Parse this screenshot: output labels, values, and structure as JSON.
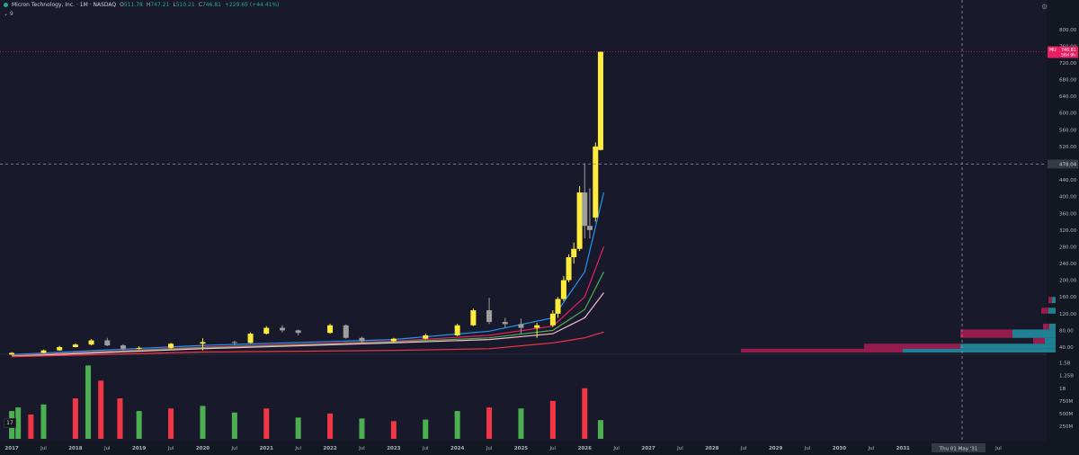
{
  "header": {
    "symbol": "Micron Technology, Inc. · 1M · NASDAQ",
    "open_label": "O",
    "open": "511.78",
    "high_label": "H",
    "high": "747.21",
    "low_label": "L",
    "low": "510.21",
    "close_label": "C",
    "close": "746.81",
    "change": "+229.65 (+44.41%)",
    "collapse": "⌄ 9"
  },
  "icons": [
    "settings-icon",
    "collapse-chevron-icon",
    "volume-indicator-icon"
  ],
  "colors": {
    "bg": "#181a2b",
    "up_bar": "#ffeb3b",
    "down_bar": "#9e9e9e",
    "vol_up": "#4caf50",
    "vol_down": "#f23645",
    "price_tag": "#e91e63"
  },
  "price_axis": {
    "ticks": [
      "800.00",
      "760.00",
      "720.00",
      "680.00",
      "640.00",
      "600.00",
      "560.00",
      "520.00",
      "480.00",
      "440.00",
      "400.00",
      "360.00",
      "320.00",
      "280.00",
      "240.00",
      "200.00",
      "160.00",
      "120.00",
      "80.00",
      "40.00"
    ],
    "crosshair_price": "478.04",
    "tag_symbol": "MU",
    "tag_price": "746.81",
    "tag_countdown": "58d 9h"
  },
  "volume_axis": {
    "ticks": [
      "1.5B",
      "1.25B",
      "1B",
      "750M",
      "500M",
      "250M"
    ]
  },
  "time_axis": {
    "labels": [
      "2017",
      "Jul",
      "2018",
      "Jul",
      "2019",
      "Jul",
      "2020",
      "Jul",
      "2021",
      "Jul",
      "2022",
      "Jul",
      "2023",
      "Jul",
      "2024",
      "Jul",
      "2025",
      "Jul",
      "2026",
      "Jul",
      "2027",
      "Jul",
      "2028",
      "Jul",
      "2029",
      "Jul",
      "2030",
      "Jul",
      "2031",
      "Jul",
      "2032",
      "Jul"
    ],
    "crosshair_time": "Thu 01 May '31"
  },
  "chart_data": [
    {
      "type": "candlestick",
      "title": "Micron Technology, Inc. · 1M · NASDAQ",
      "x_unit": "year",
      "xlim": [
        2016.9,
        2033.2
      ],
      "ylim": [
        27,
        806
      ],
      "y_scale": "linear",
      "grid": false,
      "candles": [
        {
          "t": 2017.0,
          "o": 22,
          "c": 26,
          "h": 28,
          "l": 21
        },
        {
          "t": 2017.5,
          "o": 26,
          "c": 32,
          "h": 34,
          "l": 25
        },
        {
          "t": 2017.75,
          "o": 32,
          "c": 40,
          "h": 43,
          "l": 31
        },
        {
          "t": 2018.0,
          "o": 40,
          "c": 46,
          "h": 49,
          "l": 39
        },
        {
          "t": 2018.25,
          "o": 46,
          "c": 56,
          "h": 59,
          "l": 44
        },
        {
          "t": 2018.5,
          "o": 56,
          "c": 44,
          "h": 62,
          "l": 42
        },
        {
          "t": 2018.75,
          "o": 44,
          "c": 36,
          "h": 47,
          "l": 32
        },
        {
          "t": 2019.0,
          "o": 36,
          "c": 38,
          "h": 42,
          "l": 34
        },
        {
          "t": 2019.5,
          "o": 38,
          "c": 48,
          "h": 50,
          "l": 36
        },
        {
          "t": 2020.0,
          "o": 48,
          "c": 52,
          "h": 61,
          "l": 32
        },
        {
          "t": 2020.5,
          "o": 52,
          "c": 50,
          "h": 55,
          "l": 44
        },
        {
          "t": 2020.75,
          "o": 50,
          "c": 72,
          "h": 75,
          "l": 49
        },
        {
          "t": 2021.0,
          "o": 72,
          "c": 86,
          "h": 90,
          "l": 70
        },
        {
          "t": 2021.25,
          "o": 86,
          "c": 80,
          "h": 92,
          "l": 75
        },
        {
          "t": 2021.5,
          "o": 80,
          "c": 74,
          "h": 82,
          "l": 68
        },
        {
          "t": 2022.0,
          "o": 74,
          "c": 92,
          "h": 96,
          "l": 72
        },
        {
          "t": 2022.25,
          "o": 92,
          "c": 62,
          "h": 94,
          "l": 60
        },
        {
          "t": 2022.5,
          "o": 62,
          "c": 54,
          "h": 65,
          "l": 48
        },
        {
          "t": 2023.0,
          "o": 54,
          "c": 60,
          "h": 62,
          "l": 52
        },
        {
          "t": 2023.5,
          "o": 60,
          "c": 68,
          "h": 72,
          "l": 58
        },
        {
          "t": 2024.0,
          "o": 68,
          "c": 92,
          "h": 96,
          "l": 66
        },
        {
          "t": 2024.25,
          "o": 92,
          "c": 128,
          "h": 132,
          "l": 90
        },
        {
          "t": 2024.5,
          "o": 128,
          "c": 100,
          "h": 158,
          "l": 95
        },
        {
          "t": 2024.75,
          "o": 100,
          "c": 95,
          "h": 110,
          "l": 86
        },
        {
          "t": 2025.0,
          "o": 95,
          "c": 86,
          "h": 108,
          "l": 72
        },
        {
          "t": 2025.25,
          "o": 86,
          "c": 92,
          "h": 98,
          "l": 62
        },
        {
          "t": 2025.5,
          "o": 92,
          "c": 120,
          "h": 128,
          "l": 88
        },
        {
          "t": 2025.58,
          "o": 120,
          "c": 155,
          "h": 160,
          "l": 110
        },
        {
          "t": 2025.67,
          "o": 155,
          "c": 200,
          "h": 210,
          "l": 150
        },
        {
          "t": 2025.75,
          "o": 200,
          "c": 255,
          "h": 262,
          "l": 195
        },
        {
          "t": 2025.83,
          "o": 255,
          "c": 275,
          "h": 290,
          "l": 240
        },
        {
          "t": 2025.92,
          "o": 275,
          "c": 410,
          "h": 425,
          "l": 270
        },
        {
          "t": 2026.0,
          "o": 410,
          "c": 330,
          "h": 480,
          "l": 300
        },
        {
          "t": 2026.08,
          "o": 330,
          "c": 320,
          "h": 420,
          "l": 300
        },
        {
          "t": 2026.17,
          "o": 350,
          "c": 520,
          "h": 530,
          "l": 340
        },
        {
          "t": 2026.25,
          "o": 511.78,
          "c": 746.81,
          "h": 747.21,
          "l": 510.21
        }
      ],
      "moving_averages": [
        {
          "color": "#2196f3",
          "values": [
            [
              2017.0,
              22
            ],
            [
              2020.0,
              44
            ],
            [
              2023.0,
              58
            ],
            [
              2024.5,
              78
            ],
            [
              2025.5,
              110
            ],
            [
              2026.0,
              220
            ],
            [
              2026.3,
              410
            ]
          ]
        },
        {
          "color": "#e91e63",
          "values": [
            [
              2017.0,
              20
            ],
            [
              2020.0,
              40
            ],
            [
              2023.0,
              54
            ],
            [
              2024.5,
              68
            ],
            [
              2025.5,
              90
            ],
            [
              2026.0,
              160
            ],
            [
              2026.3,
              280
            ]
          ]
        },
        {
          "color": "#4caf50",
          "values": [
            [
              2017.0,
              19
            ],
            [
              2020.0,
              38
            ],
            [
              2023.0,
              52
            ],
            [
              2024.5,
              62
            ],
            [
              2025.5,
              80
            ],
            [
              2026.0,
              130
            ],
            [
              2026.3,
              220
            ]
          ]
        },
        {
          "color": "#f8bbd0",
          "values": [
            [
              2017.0,
              18
            ],
            [
              2020.0,
              36
            ],
            [
              2023.0,
              50
            ],
            [
              2024.5,
              58
            ],
            [
              2025.5,
              72
            ],
            [
              2026.0,
              110
            ],
            [
              2026.3,
              170
            ]
          ]
        },
        {
          "color": "#f23645",
          "values": [
            [
              2017.0,
              17
            ],
            [
              2020.0,
              28
            ],
            [
              2023.0,
              32
            ],
            [
              2024.5,
              36
            ],
            [
              2025.5,
              50
            ],
            [
              2026.0,
              62
            ],
            [
              2026.3,
              76
            ]
          ]
        }
      ],
      "volume_profile": [
        {
          "price": [
            27,
            36
          ],
          "down_width": 180,
          "up_width": 170
        },
        {
          "price": [
            36,
            48
          ],
          "down_width": 107,
          "up_width": 106
        },
        {
          "price": [
            48,
            62
          ],
          "down_width": 13,
          "up_width": 12
        },
        {
          "price": [
            62,
            82
          ],
          "down_width": 58,
          "up_width": 48
        },
        {
          "price": [
            82,
            96
          ],
          "down_width": 7,
          "up_width": 7
        },
        {
          "price": [
            120,
            134
          ],
          "down_width": 8,
          "up_width": 8
        },
        {
          "price": [
            145,
            160
          ],
          "down_width": 4,
          "up_width": 4
        }
      ]
    },
    {
      "type": "bar",
      "title": "Volume",
      "x_unit": "year",
      "xlim": [
        2016.9,
        2033.2
      ],
      "ylim": [
        0,
        1.6
      ],
      "y_unit": "B",
      "values_up_down": [
        [
          2017.0,
          0.55,
          "up"
        ],
        [
          2017.1,
          0.62,
          "up"
        ],
        [
          2017.3,
          0.48,
          "down"
        ],
        [
          2017.5,
          0.68,
          "up"
        ],
        [
          2018.0,
          0.8,
          "down"
        ],
        [
          2018.2,
          1.45,
          "up"
        ],
        [
          2018.4,
          1.15,
          "down"
        ],
        [
          2018.7,
          0.8,
          "down"
        ],
        [
          2019.0,
          0.55,
          "up"
        ],
        [
          2019.5,
          0.6,
          "down"
        ],
        [
          2020.0,
          0.65,
          "up"
        ],
        [
          2020.5,
          0.52,
          "up"
        ],
        [
          2021.0,
          0.6,
          "down"
        ],
        [
          2021.5,
          0.42,
          "up"
        ],
        [
          2022.0,
          0.5,
          "down"
        ],
        [
          2022.5,
          0.4,
          "up"
        ],
        [
          2023.0,
          0.35,
          "down"
        ],
        [
          2023.5,
          0.38,
          "up"
        ],
        [
          2024.0,
          0.55,
          "up"
        ],
        [
          2024.5,
          0.62,
          "down"
        ],
        [
          2025.0,
          0.6,
          "up"
        ],
        [
          2025.5,
          0.75,
          "down"
        ],
        [
          2026.0,
          1.0,
          "down"
        ],
        [
          2026.25,
          0.37,
          "up"
        ]
      ]
    }
  ]
}
